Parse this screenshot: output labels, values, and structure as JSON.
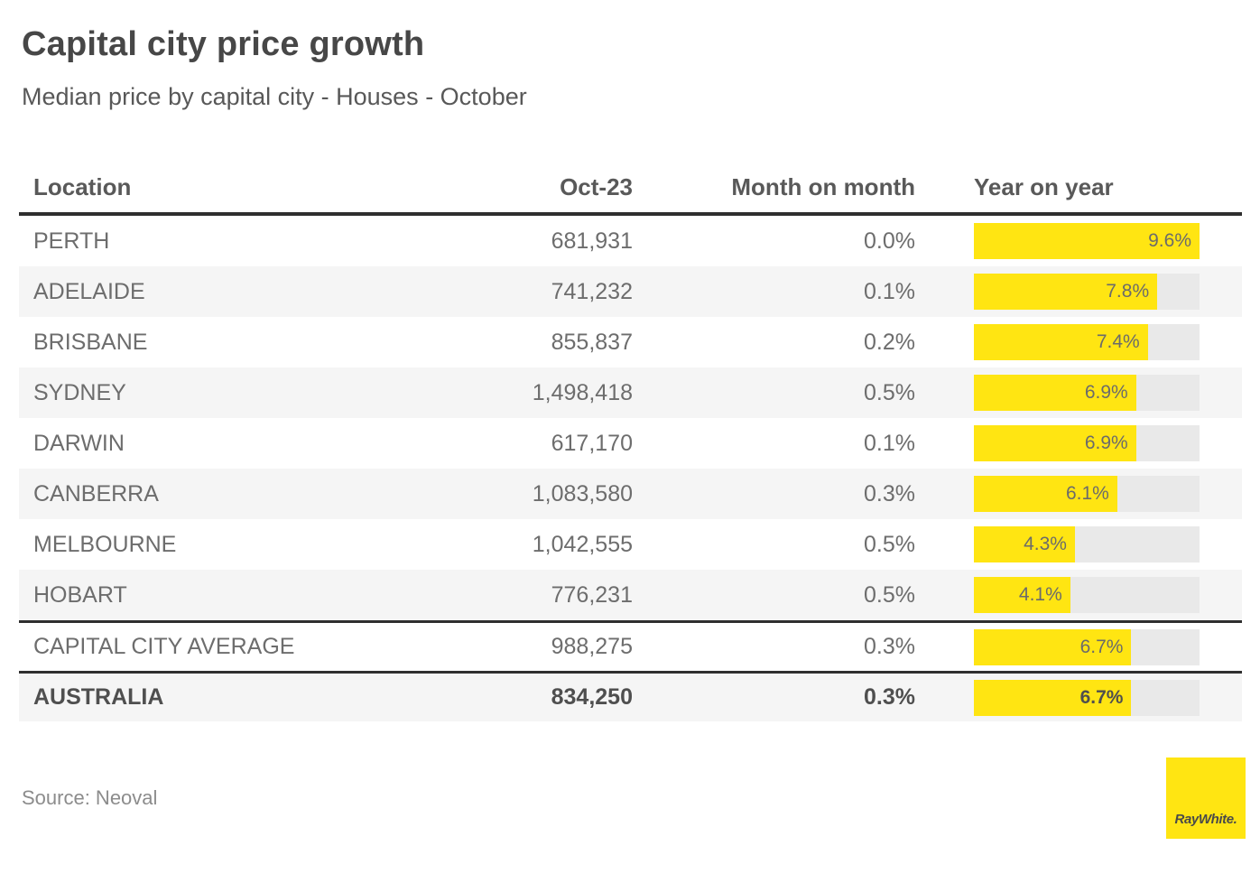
{
  "title": "Capital city price growth",
  "subtitle": "Median price by capital city - Houses - October",
  "table": {
    "headers": {
      "location": "Location",
      "price": "Oct-23",
      "mom": "Month on month",
      "yoy": "Year on year"
    },
    "bar_scale_max": 9.6,
    "rows": [
      {
        "location": "PERTH",
        "price": "681,931",
        "mom": "0.0%",
        "yoy_label": "9.6%",
        "yoy_value": 9.6,
        "emphasis": false,
        "separator_top": false
      },
      {
        "location": "ADELAIDE",
        "price": "741,232",
        "mom": "0.1%",
        "yoy_label": "7.8%",
        "yoy_value": 7.8,
        "emphasis": false,
        "separator_top": false
      },
      {
        "location": "BRISBANE",
        "price": "855,837",
        "mom": "0.2%",
        "yoy_label": "7.4%",
        "yoy_value": 7.4,
        "emphasis": false,
        "separator_top": false
      },
      {
        "location": "SYDNEY",
        "price": "1,498,418",
        "mom": "0.5%",
        "yoy_label": "6.9%",
        "yoy_value": 6.9,
        "emphasis": false,
        "separator_top": false
      },
      {
        "location": "DARWIN",
        "price": "617,170",
        "mom": "0.1%",
        "yoy_label": "6.9%",
        "yoy_value": 6.9,
        "emphasis": false,
        "separator_top": false
      },
      {
        "location": "CANBERRA",
        "price": "1,083,580",
        "mom": "0.3%",
        "yoy_label": "6.1%",
        "yoy_value": 6.1,
        "emphasis": false,
        "separator_top": false
      },
      {
        "location": "MELBOURNE",
        "price": "1,042,555",
        "mom": "0.5%",
        "yoy_label": "4.3%",
        "yoy_value": 4.3,
        "emphasis": false,
        "separator_top": false
      },
      {
        "location": "HOBART",
        "price": "776,231",
        "mom": "0.5%",
        "yoy_label": "4.1%",
        "yoy_value": 4.1,
        "emphasis": false,
        "separator_top": false
      },
      {
        "location": "CAPITAL CITY AVERAGE",
        "price": "988,275",
        "mom": "0.3%",
        "yoy_label": "6.7%",
        "yoy_value": 6.7,
        "emphasis": false,
        "separator_top": true
      },
      {
        "location": "AUSTRALIA",
        "price": "834,250",
        "mom": "0.3%",
        "yoy_label": "6.7%",
        "yoy_value": 6.7,
        "emphasis": true,
        "separator_top": true
      }
    ]
  },
  "footer": {
    "source": "Source: Neoval",
    "logo_text": "RayWhite."
  },
  "colors": {
    "brand_yellow": "#FFE512",
    "bar_track": "#e9e9e9",
    "row_stripe": "#f5f5f5",
    "dark_border": "#2f2f2f",
    "cell_text": "#6d6d6d"
  },
  "chart_data": {
    "type": "table",
    "title": "Capital city price growth",
    "subtitle": "Median price by capital city - Houses - October",
    "columns": [
      "Location",
      "Oct-23",
      "Month on month",
      "Year on year"
    ],
    "categories": [
      "PERTH",
      "ADELAIDE",
      "BRISBANE",
      "SYDNEY",
      "DARWIN",
      "CANBERRA",
      "MELBOURNE",
      "HOBART",
      "CAPITAL CITY AVERAGE",
      "AUSTRALIA"
    ],
    "series": [
      {
        "name": "Oct-23 median price",
        "values": [
          681931,
          741232,
          855837,
          1498418,
          617170,
          1083580,
          1042555,
          776231,
          988275,
          834250
        ]
      },
      {
        "name": "Month on month %",
        "values": [
          0.0,
          0.1,
          0.2,
          0.5,
          0.1,
          0.3,
          0.5,
          0.5,
          0.3,
          0.3
        ]
      },
      {
        "name": "Year on year %",
        "values": [
          9.6,
          7.8,
          7.4,
          6.9,
          6.9,
          6.1,
          4.3,
          4.1,
          6.7,
          6.7
        ]
      }
    ],
    "bar_column": "Year on year",
    "bar_type": "inline-bar",
    "bar_axis_range": [
      0,
      9.6
    ],
    "legend_position": "none",
    "grid": false,
    "source": "Source: Neoval"
  }
}
